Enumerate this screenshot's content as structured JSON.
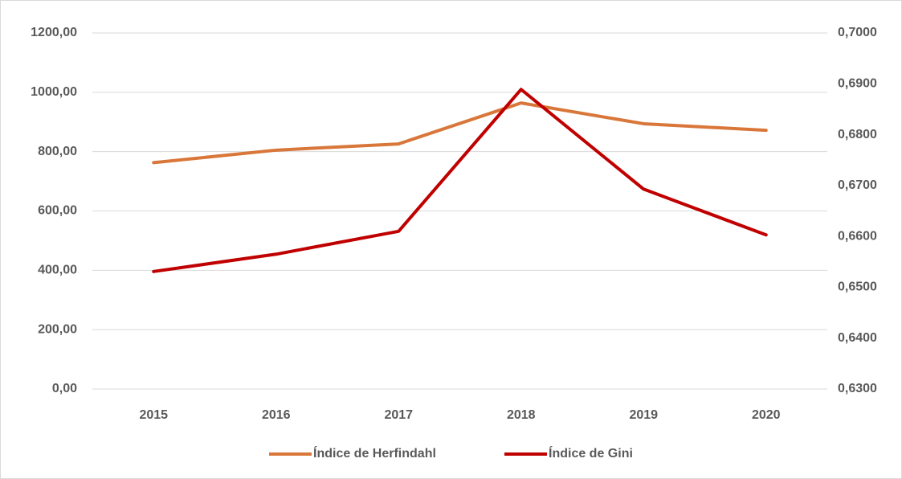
{
  "chart_data": {
    "type": "line",
    "categories": [
      "2015",
      "2016",
      "2017",
      "2018",
      "2019",
      "2020"
    ],
    "series": [
      {
        "name": "Índice de Herfindahl",
        "color": "#d9773a",
        "values": [
          763,
          805,
          826,
          964,
          894,
          872
        ]
      },
      {
        "name": "Índice de Gini",
        "color": "#c00000",
        "axis": "y2",
        "values": [
          0.6531,
          0.6565,
          0.661,
          0.6889,
          0.6693,
          0.6603
        ]
      }
    ],
    "ylim": [
      0,
      1200
    ],
    "yticks": [
      {
        "value": 0,
        "label": "0,00"
      },
      {
        "value": 200,
        "label": "200,00"
      },
      {
        "value": 400,
        "label": "400,00"
      },
      {
        "value": 600,
        "label": "600,00"
      },
      {
        "value": 800,
        "label": "800,00"
      },
      {
        "value": 1000,
        "label": "1000,00"
      },
      {
        "value": 1200,
        "label": "1200,00"
      }
    ],
    "y2lim": [
      0.63,
      0.7
    ],
    "y2ticks": [
      {
        "value": 0.63,
        "label": "0,6300"
      },
      {
        "value": 0.64,
        "label": "0,6400"
      },
      {
        "value": 0.65,
        "label": "0,6500"
      },
      {
        "value": 0.66,
        "label": "0,6600"
      },
      {
        "value": 0.67,
        "label": "0,6700"
      },
      {
        "value": 0.68,
        "label": "0,6800"
      },
      {
        "value": 0.69,
        "label": "0,6900"
      },
      {
        "value": 0.7,
        "label": "0,7000"
      }
    ],
    "grid": true,
    "legend": "bottom"
  }
}
